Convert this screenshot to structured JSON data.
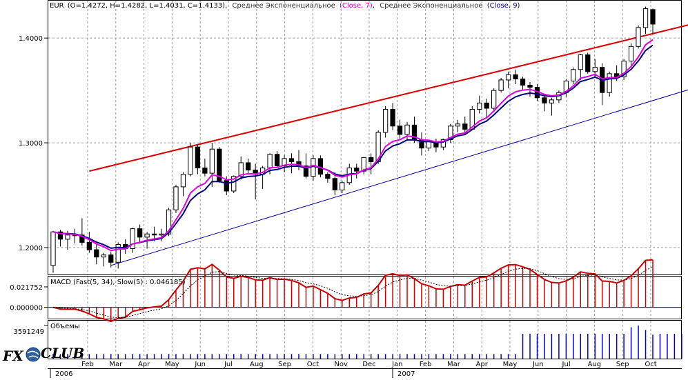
{
  "header": {
    "symbol": "EUR",
    "ohlc": "(O=1.4272, H=1.4282, L=1.4031, C=1.4133)",
    "sep": ",",
    "ema1_label": "Среднее Экспоненциальное",
    "ema1_params": "(Close, 7)",
    "ema2_label": "Среднее Экспоненциальное",
    "ema2_params": "(Close, 9)"
  },
  "macd_panel": {
    "label": "MACD (Fast(5, 34), Slow(5) : 0.046185)"
  },
  "volume_panel": {
    "label": "Объемы",
    "max_label": "3591249"
  },
  "logo": {
    "text": "FXCLUB",
    "fx": "FX",
    "club": "CLUB"
  },
  "colors": {
    "bull_body": "#ffffff",
    "bear_body": "#000000",
    "candle_outline": "#000000",
    "ema7": "#e000e0",
    "ema9": "#000080",
    "upper_channel": "#dd0000",
    "lower_channel": "#0000aa",
    "macd_hist": "#cc0000",
    "macd_signal": "#000000",
    "volume": "#0000cc",
    "grid": "#999999",
    "logo_fx": "#1a3a6a",
    "logo_club": "#3060a0"
  },
  "chart_data": [
    {
      "type": "candlestick",
      "panel": "price",
      "ylim": [
        1.175,
        1.435
      ],
      "yticks": [
        1.2,
        1.3,
        1.4
      ],
      "ytick_labels": [
        "1.2000",
        "1.3000",
        "1.4000"
      ],
      "grid": true,
      "month_labels": [
        "Feb",
        "Mar",
        "Apr",
        "May",
        "Jun",
        "Jul",
        "Aug",
        "Sep",
        "Oct",
        "Nov",
        "Dec",
        "Jan",
        "Feb",
        "Mar",
        "Apr",
        "May",
        "Jun",
        "Jul",
        "Aug",
        "Sep",
        "Oct"
      ],
      "year_labels": [
        "2006",
        "2007"
      ],
      "candles": [
        [
          1.183,
          1.216,
          1.176,
          1.215
        ],
        [
          1.215,
          1.217,
          1.201,
          1.208
        ],
        [
          1.208,
          1.216,
          1.198,
          1.212
        ],
        [
          1.212,
          1.218,
          1.204,
          1.212
        ],
        [
          1.212,
          1.228,
          1.202,
          1.205
        ],
        [
          1.205,
          1.215,
          1.195,
          1.198
        ],
        [
          1.198,
          1.204,
          1.184,
          1.191
        ],
        [
          1.191,
          1.195,
          1.182,
          1.193
        ],
        [
          1.193,
          1.196,
          1.181,
          1.186
        ],
        [
          1.186,
          1.205,
          1.18,
          1.203
        ],
        [
          1.203,
          1.208,
          1.194,
          1.199
        ],
        [
          1.199,
          1.219,
          1.195,
          1.218
        ],
        [
          1.218,
          1.222,
          1.204,
          1.21
        ],
        [
          1.21,
          1.215,
          1.199,
          1.213
        ],
        [
          1.213,
          1.22,
          1.206,
          1.212
        ],
        [
          1.212,
          1.218,
          1.206,
          1.213
        ],
        [
          1.213,
          1.238,
          1.211,
          1.236
        ],
        [
          1.236,
          1.26,
          1.233,
          1.258
        ],
        [
          1.258,
          1.272,
          1.249,
          1.27
        ],
        [
          1.27,
          1.3,
          1.268,
          1.296
        ],
        [
          1.296,
          1.298,
          1.27,
          1.276
        ],
        [
          1.276,
          1.285,
          1.268,
          1.271
        ],
        [
          1.271,
          1.3,
          1.258,
          1.294
        ],
        [
          1.294,
          1.296,
          1.262,
          1.264
        ],
        [
          1.264,
          1.268,
          1.25,
          1.254
        ],
        [
          1.254,
          1.269,
          1.252,
          1.268
        ],
        [
          1.268,
          1.287,
          1.265,
          1.281
        ],
        [
          1.281,
          1.285,
          1.27,
          1.274
        ],
        [
          1.274,
          1.28,
          1.246,
          1.27
        ],
        [
          1.27,
          1.278,
          1.256,
          1.276
        ],
        [
          1.276,
          1.29,
          1.27,
          1.289
        ],
        [
          1.289,
          1.292,
          1.276,
          1.278
        ],
        [
          1.278,
          1.288,
          1.272,
          1.285
        ],
        [
          1.285,
          1.29,
          1.271,
          1.282
        ],
        [
          1.282,
          1.293,
          1.274,
          1.278
        ],
        [
          1.278,
          1.29,
          1.266,
          1.268
        ],
        [
          1.268,
          1.288,
          1.264,
          1.285
        ],
        [
          1.285,
          1.288,
          1.267,
          1.27
        ],
        [
          1.27,
          1.272,
          1.262,
          1.266
        ],
        [
          1.266,
          1.272,
          1.25,
          1.255
        ],
        [
          1.255,
          1.264,
          1.252,
          1.262
        ],
        [
          1.262,
          1.28,
          1.26,
          1.276
        ],
        [
          1.276,
          1.28,
          1.266,
          1.273
        ],
        [
          1.273,
          1.286,
          1.27,
          1.286
        ],
        [
          1.286,
          1.29,
          1.27,
          1.282
        ],
        [
          1.282,
          1.312,
          1.28,
          1.31
        ],
        [
          1.31,
          1.335,
          1.305,
          1.332
        ],
        [
          1.332,
          1.338,
          1.312,
          1.316
        ],
        [
          1.316,
          1.322,
          1.304,
          1.308
        ],
        [
          1.308,
          1.32,
          1.302,
          1.317
        ],
        [
          1.317,
          1.325,
          1.3,
          1.303
        ],
        [
          1.303,
          1.31,
          1.288,
          1.295
        ],
        [
          1.295,
          1.303,
          1.292,
          1.301
        ],
        [
          1.301,
          1.304,
          1.291,
          1.296
        ],
        [
          1.296,
          1.304,
          1.293,
          1.303
        ],
        [
          1.303,
          1.318,
          1.3,
          1.316
        ],
        [
          1.316,
          1.322,
          1.31,
          1.318
        ],
        [
          1.318,
          1.325,
          1.308,
          1.313
        ],
        [
          1.313,
          1.335,
          1.312,
          1.332
        ],
        [
          1.332,
          1.345,
          1.328,
          1.338
        ],
        [
          1.338,
          1.342,
          1.324,
          1.333
        ],
        [
          1.333,
          1.352,
          1.33,
          1.35
        ],
        [
          1.35,
          1.362,
          1.348,
          1.36
        ],
        [
          1.36,
          1.368,
          1.352,
          1.365
        ],
        [
          1.365,
          1.37,
          1.356,
          1.361
        ],
        [
          1.361,
          1.363,
          1.35,
          1.355
        ],
        [
          1.355,
          1.358,
          1.344,
          1.353
        ],
        [
          1.353,
          1.356,
          1.34,
          1.343
        ],
        [
          1.343,
          1.347,
          1.33,
          1.338
        ],
        [
          1.338,
          1.343,
          1.326,
          1.341
        ],
        [
          1.341,
          1.35,
          1.338,
          1.348
        ],
        [
          1.348,
          1.361,
          1.344,
          1.359
        ],
        [
          1.359,
          1.372,
          1.356,
          1.37
        ],
        [
          1.37,
          1.385,
          1.36,
          1.384
        ],
        [
          1.384,
          1.386,
          1.366,
          1.368
        ],
        [
          1.368,
          1.38,
          1.362,
          1.372
        ],
        [
          1.372,
          1.376,
          1.336,
          1.348
        ],
        [
          1.348,
          1.368,
          1.344,
          1.366
        ],
        [
          1.366,
          1.374,
          1.359,
          1.363
        ],
        [
          1.363,
          1.38,
          1.36,
          1.378
        ],
        [
          1.378,
          1.395,
          1.374,
          1.392
        ],
        [
          1.392,
          1.412,
          1.39,
          1.41
        ],
        [
          1.41,
          1.43,
          1.404,
          1.428
        ],
        [
          1.4272,
          1.4282,
          1.4031,
          1.4133
        ]
      ],
      "series": [
        {
          "name": "Среднее Экспоненциальное (Close, 7)",
          "color": "#e000e0"
        },
        {
          "name": "Среднее Экспоненциальное (Close, 9)",
          "color": "#000080"
        }
      ],
      "trendlines": [
        {
          "from": [
            8,
            1.183
          ],
          "to": [
            90,
            1.355
          ],
          "color": "#0000aa"
        },
        {
          "from": [
            5,
            1.273
          ],
          "to": [
            90,
            1.416
          ],
          "color": "#dd0000"
        }
      ]
    },
    {
      "type": "bar",
      "panel": "macd",
      "ylim": [
        -0.012,
        0.032
      ],
      "yticks": [
        0.0,
        0.021752
      ],
      "ytick_labels": [
        "0.000000",
        "0.021752"
      ],
      "series": [
        {
          "name": "Fast(5, 34)",
          "kind": "histogram"
        },
        {
          "name": "Slow(5)",
          "kind": "line"
        }
      ]
    },
    {
      "type": "bar",
      "panel": "volume",
      "ylim": [
        0,
        3591249
      ],
      "ytick_labels": [
        "3591249"
      ],
      "series": [
        {
          "name": "Объемы",
          "values": [
            500000,
            500000,
            500000,
            500000,
            500000,
            500000,
            500000,
            500000,
            500000,
            500000,
            500000,
            500000,
            500000,
            500000,
            500000,
            500000,
            500000,
            500000,
            500000,
            500000,
            500000,
            500000,
            500000,
            500000,
            500000,
            500000,
            500000,
            500000,
            500000,
            500000,
            500000,
            500000,
            500000,
            500000,
            500000,
            500000,
            500000,
            500000,
            500000,
            500000,
            500000,
            500000,
            500000,
            500000,
            500000,
            500000,
            500000,
            500000,
            500000,
            500000,
            500000,
            500000,
            500000,
            500000,
            500000,
            500000,
            500000,
            500000,
            500000,
            500000,
            500000,
            500000,
            500000,
            500000,
            500000,
            2700000,
            2700000,
            2700000,
            2700000,
            2700000,
            2700000,
            2700000,
            2700000,
            2700000,
            2700000,
            2700000,
            2700000,
            2700000,
            2700000,
            2700000,
            3400000,
            3591249,
            3100000,
            2600000,
            2700000,
            2700000,
            2700000,
            2700000,
            2700000,
            2700000
          ]
        }
      ]
    }
  ]
}
